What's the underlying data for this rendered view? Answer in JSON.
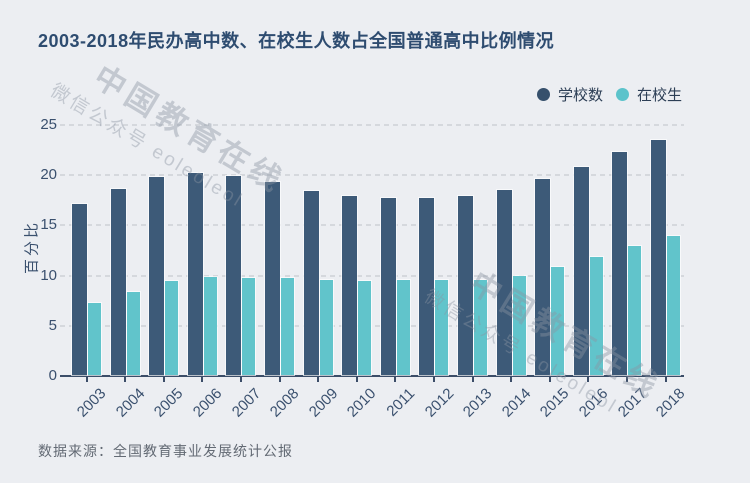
{
  "header": {
    "title": "2003-2018年民办高中数、在校生人数占全国普通高中比例情况"
  },
  "legend": {
    "items": [
      {
        "label": "学校数",
        "color": "#36506c"
      },
      {
        "label": "在校生",
        "color": "#5cc3cb"
      }
    ]
  },
  "watermark": {
    "big": "中国教育在线",
    "small": "微信公众号 eoleoleol"
  },
  "footer": {
    "source": "数据来源：全国教育事业发展统计公报"
  },
  "chart_data": {
    "type": "bar",
    "title": "2003-2018年民办高中数、在校生人数占全国普通高中比例情况",
    "categories": [
      "2003",
      "2004",
      "2005",
      "2006",
      "2007",
      "2008",
      "2009",
      "2010",
      "2011",
      "2012",
      "2013",
      "2014",
      "2015",
      "2016",
      "2017",
      "2018"
    ],
    "series": [
      {
        "name": "学校数",
        "color": "#3d5a78",
        "values": [
          17.0,
          18.5,
          19.7,
          20.1,
          19.8,
          19.2,
          18.3,
          17.8,
          17.6,
          17.6,
          17.8,
          18.4,
          19.5,
          20.7,
          22.2,
          23.4
        ]
      },
      {
        "name": "在校生",
        "color": "#61c4cb",
        "values": [
          7.2,
          8.3,
          9.4,
          9.8,
          9.7,
          9.7,
          9.5,
          9.4,
          9.5,
          9.5,
          9.5,
          9.9,
          10.8,
          11.8,
          12.9,
          13.8
        ]
      }
    ],
    "xlabel": "",
    "ylabel": "百分比",
    "ylim": [
      0,
      25
    ],
    "yticks": [
      0,
      5,
      10,
      15,
      20,
      25
    ],
    "grid": "horizontal-dashed",
    "legend_position": "top-right",
    "source": "数据来源：全国教育事业发展统计公报"
  }
}
